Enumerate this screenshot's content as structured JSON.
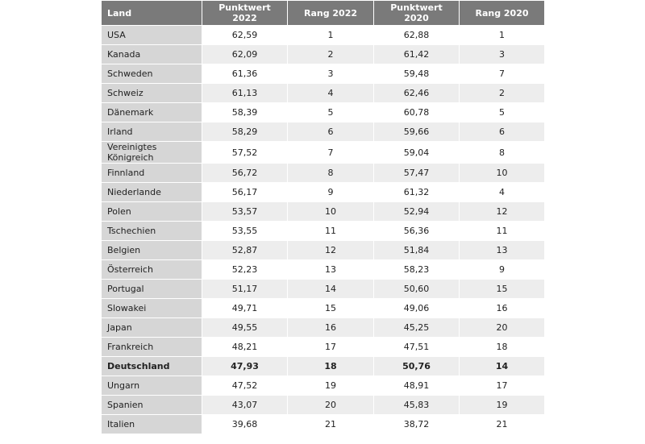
{
  "table": {
    "header": [
      "Land",
      "Punktwert 2022",
      "Rang 2022",
      "Punktwert 2020",
      "Rang 2020"
    ],
    "rows": [
      [
        "USA",
        "62,59",
        1,
        "62,88",
        1
      ],
      [
        "Kanada",
        "62,09",
        2,
        "61,42",
        3
      ],
      [
        "Schweden",
        "61,36",
        3,
        "59,48",
        7
      ],
      [
        "Schweiz",
        "61,13",
        4,
        "62,46",
        2
      ],
      [
        "Dänemark",
        "58,39",
        5,
        "60,78",
        5
      ],
      [
        "Irland",
        "58,29",
        6,
        "59,66",
        6
      ],
      [
        "Vereinigtes Königreich",
        "57,52",
        7,
        "59,04",
        8
      ],
      [
        "Finnland",
        "56,72",
        8,
        "57,47",
        10
      ],
      [
        "Niederlande",
        "56,17",
        9,
        "61,32",
        4
      ],
      [
        "Polen",
        "53,57",
        10,
        "52,94",
        12
      ],
      [
        "Tschechien",
        "53,55",
        11,
        "56,36",
        11
      ],
      [
        "Belgien",
        "52,87",
        12,
        "51,84",
        13
      ],
      [
        "Österreich",
        "52,23",
        13,
        "58,23",
        9
      ],
      [
        "Portugal",
        "51,17",
        14,
        "50,60",
        15
      ],
      [
        "Slowakei",
        "49,71",
        15,
        "49,06",
        16
      ],
      [
        "Japan",
        "49,55",
        16,
        "45,25",
        20
      ],
      [
        "Frankreich",
        "48,21",
        17,
        "47,51",
        18
      ],
      [
        "Deutschland",
        "47,93",
        18,
        "50,76",
        14
      ],
      [
        "Ungarn",
        "47,52",
        19,
        "48,91",
        17
      ],
      [
        "Spanien",
        "43,07",
        20,
        "45,83",
        19
      ],
      [
        "Italien",
        "39,68",
        21,
        "38,72",
        21
      ]
    ]
  }
}
